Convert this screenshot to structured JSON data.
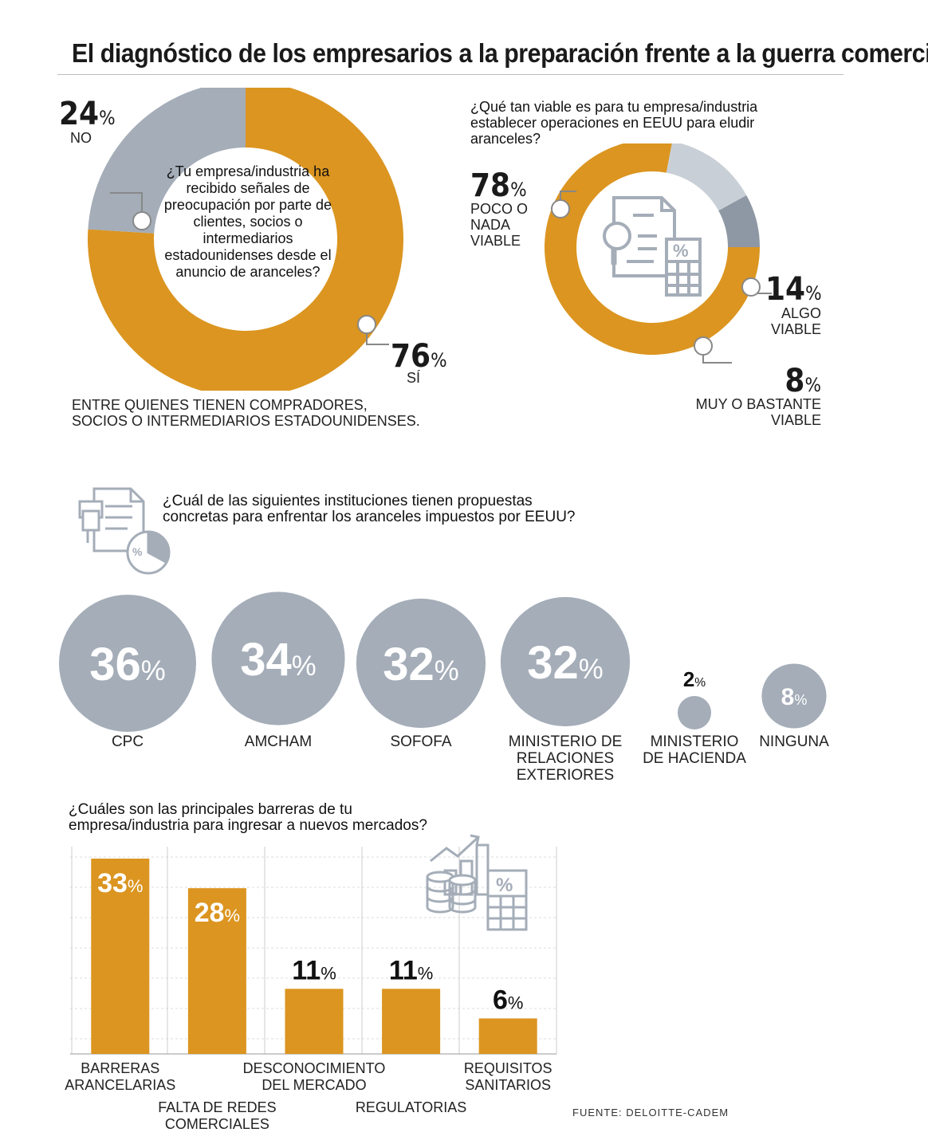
{
  "title": "El diagnóstico de los empresarios a la preparación frente a la guerra comercial",
  "colors": {
    "accent": "#DB9520",
    "gray": "#A4ADB8",
    "light_gray": "#C9CFD6",
    "dark_gray": "#8E98A4"
  },
  "donut1": {
    "question": "¿Tu empresa/industria ha recibido señales de preocupación por parte de clientes, socios o intermediarios estadounidenses desde el anuncio de aranceles?",
    "no_value": "24",
    "no_label": "NO",
    "yes_value": "76",
    "yes_label": "SÍ",
    "footnote_1": "ENTRE QUIENES TIENEN COMPRADORES,",
    "footnote_2": "SOCIOS O INTERMEDIARIOS ESTADOUNIDENSES."
  },
  "donut2": {
    "question_1": "¿Qué tan viable es para tu empresa/industria",
    "question_2": "establecer operaciones en EEUU para eludir",
    "question_3": "aranceles?",
    "a_value": "78",
    "a_label_1": "POCO O",
    "a_label_2": "NADA",
    "a_label_3": "VIABLE",
    "b_value": "14",
    "b_label_1": "ALGO",
    "b_label_2": "VIABLE",
    "c_value": "8",
    "c_label_1": "MUY O BASTANTE",
    "c_label_2": "VIABLE",
    "icon": "document-magnifier-calculator-icon"
  },
  "bubbles": {
    "question_1": "¿Cuál de las siguientes instituciones tienen propuestas",
    "question_2": "concretas para enfrentar los aranceles impuestos por EEUU?",
    "icon": "documents-pie-chart-icon",
    "items": [
      {
        "value": "36",
        "label_1": "CPC",
        "label_2": "",
        "label_3": ""
      },
      {
        "value": "34",
        "label_1": "AMCHAM",
        "label_2": "",
        "label_3": ""
      },
      {
        "value": "32",
        "label_1": "SOFOFA",
        "label_2": "",
        "label_3": ""
      },
      {
        "value": "32",
        "label_1": "MINISTERIO DE",
        "label_2": "RELACIONES",
        "label_3": "EXTERIORES"
      },
      {
        "value": "2",
        "label_1": "MINISTERIO",
        "label_2": "DE HACIENDA",
        "label_3": ""
      },
      {
        "value": "8",
        "label_1": "NINGUNA",
        "label_2": "",
        "label_3": ""
      }
    ]
  },
  "bars": {
    "question_1": "¿Cuáles son las principales barreras de tu",
    "question_2": "empresa/industria para ingresar a nuevos mercados?",
    "icon": "growth-coins-calculator-icon",
    "source": "FUENTE: DELOITTE-CADEM"
  },
  "chart_data": [
    {
      "type": "pie",
      "title": "¿Tu empresa/industria ha recibido señales de preocupación por parte de clientes, socios o intermediarios estadounidenses desde el anuncio de aranceles?",
      "categories": [
        "SÍ",
        "NO"
      ],
      "values": [
        76,
        24
      ]
    },
    {
      "type": "pie",
      "title": "¿Qué tan viable es para tu empresa/industria establecer operaciones en EEUU para eludir aranceles?",
      "categories": [
        "POCO O NADA VIABLE",
        "ALGO VIABLE",
        "MUY O BASTANTE VIABLE"
      ],
      "values": [
        78,
        14,
        8
      ]
    },
    {
      "type": "bubble",
      "title": "¿Cuál de las siguientes instituciones tienen propuestas concretas para enfrentar los aranceles impuestos por EEUU?",
      "categories": [
        "CPC",
        "AMCHAM",
        "SOFOFA",
        "MINISTERIO DE RELACIONES EXTERIORES",
        "MINISTERIO DE HACIENDA",
        "NINGUNA"
      ],
      "values": [
        36,
        34,
        32,
        32,
        2,
        8
      ]
    },
    {
      "type": "bar",
      "title": "¿Cuáles son las principales barreras de tu empresa/industria para ingresar a nuevos mercados?",
      "categories": [
        "BARRERAS ARANCELARIAS",
        "FALTA DE REDES COMERCIALES",
        "DESCONOCIMIENTO DEL MERCADO",
        "REGULATORIAS",
        "REQUISITOS SANITARIOS"
      ],
      "values": [
        33,
        28,
        11,
        11,
        6
      ],
      "ylim": [
        0,
        33
      ],
      "grid": true,
      "label_lines": [
        [
          "BARRERAS",
          "ARANCELARIAS"
        ],
        [
          "FALTA DE REDES",
          "COMERCIALES"
        ],
        [
          "DESCONOCIMIENTO",
          "DEL MERCADO"
        ],
        [
          "REGULATORIAS"
        ],
        [
          "REQUISITOS",
          "SANITARIOS"
        ]
      ]
    }
  ]
}
